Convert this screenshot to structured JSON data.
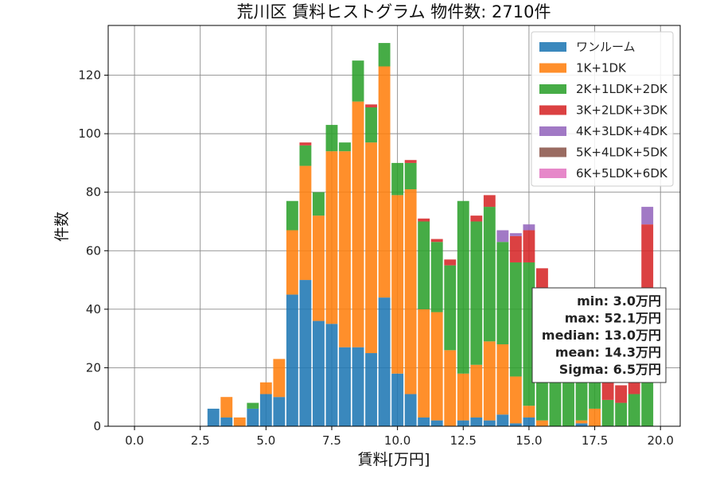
{
  "chart_data": {
    "type": "bar",
    "stacked": true,
    "title": "荒川区 賃料ヒストグラム 物件数: 2710件",
    "xlabel": "賃料[万円]",
    "ylabel": "件数",
    "xlim": [
      -1.0,
      20.75
    ],
    "ylim": [
      0,
      137
    ],
    "x_ticks": [
      0.0,
      2.5,
      5.0,
      7.5,
      10.0,
      12.5,
      15.0,
      17.5,
      20.0
    ],
    "x_tick_labels": [
      "0.0",
      "2.5",
      "5.0",
      "7.5",
      "10.0",
      "12.5",
      "15.0",
      "17.5",
      "20.0"
    ],
    "y_ticks": [
      0,
      20,
      40,
      60,
      80,
      100,
      120
    ],
    "y_tick_labels": [
      "0",
      "20",
      "40",
      "60",
      "80",
      "100",
      "120"
    ],
    "bin_width": 0.5,
    "bins": [
      3.0,
      3.5,
      4.0,
      4.5,
      5.0,
      5.5,
      6.0,
      6.5,
      7.0,
      7.5,
      8.0,
      8.5,
      9.0,
      9.5,
      10.0,
      10.5,
      11.0,
      11.5,
      12.0,
      12.5,
      13.0,
      13.5,
      14.0,
      14.5,
      15.0,
      15.5,
      16.0,
      16.5,
      17.0,
      17.5,
      18.0,
      18.5,
      19.0,
      19.5
    ],
    "grid": true,
    "legend_position": "top-right",
    "series": [
      {
        "name": "ワンルーム",
        "color": "#1f77b4",
        "values": [
          6,
          3,
          0,
          6,
          11,
          10,
          45,
          50,
          36,
          35,
          27,
          27,
          25,
          44,
          18,
          11,
          3,
          2,
          0,
          2,
          3,
          2,
          4,
          1,
          3,
          0,
          0,
          0,
          1,
          0,
          0,
          0,
          0,
          0
        ]
      },
      {
        "name": "1K+1DK",
        "color": "#ff7f0e",
        "values": [
          0,
          7,
          3,
          0,
          4,
          13,
          22,
          39,
          36,
          59,
          67,
          84,
          72,
          79,
          61,
          70,
          37,
          37,
          26,
          16,
          18,
          27,
          24,
          16,
          4,
          2,
          0,
          0,
          1,
          6,
          0,
          0,
          0,
          0
        ]
      },
      {
        "name": "2K+1LDK+2DK",
        "color": "#2ca02c",
        "values": [
          0,
          0,
          0,
          2,
          0,
          0,
          10,
          7,
          8,
          9,
          3,
          14,
          12,
          8,
          11,
          9,
          30,
          24,
          29,
          59,
          49,
          46,
          35,
          39,
          49,
          45,
          30,
          28,
          27,
          12,
          9,
          8,
          11,
          15
        ]
      },
      {
        "name": "3K+2LDK+3DK",
        "color": "#d62728",
        "values": [
          0,
          0,
          0,
          0,
          0,
          0,
          0,
          1,
          0,
          0,
          0,
          0,
          1,
          0,
          0,
          1,
          1,
          1,
          2,
          0,
          2,
          4,
          0,
          9,
          11,
          7,
          12,
          10,
          13,
          10,
          6,
          6,
          6,
          54
        ]
      },
      {
        "name": "4K+3LDK+4DK",
        "color": "#9467bd",
        "values": [
          0,
          0,
          0,
          0,
          0,
          0,
          0,
          0,
          0,
          0,
          0,
          0,
          0,
          0,
          0,
          0,
          0,
          0,
          0,
          0,
          0,
          0,
          4,
          1,
          2,
          0,
          0,
          0,
          0,
          0,
          0,
          0,
          0,
          6
        ]
      },
      {
        "name": "5K+4LDK+5DK",
        "color": "#8c564b",
        "values": [
          0,
          0,
          0,
          0,
          0,
          0,
          0,
          0,
          0,
          0,
          0,
          0,
          0,
          0,
          0,
          0,
          0,
          0,
          0,
          0,
          0,
          0,
          0,
          0,
          0,
          0,
          0,
          0,
          0,
          0,
          0,
          0,
          0,
          0
        ]
      },
      {
        "name": "6K+5LDK+6DK",
        "color": "#e377c2",
        "values": [
          0,
          0,
          0,
          0,
          0,
          0,
          0,
          0,
          0,
          0,
          0,
          0,
          0,
          0,
          0,
          0,
          0,
          0,
          0,
          0,
          0,
          0,
          0,
          0,
          0,
          0,
          0,
          0,
          0,
          0,
          0,
          0,
          0,
          0
        ]
      }
    ],
    "stats_box": {
      "lines": [
        "min: 3.0万円",
        "max: 52.1万円",
        "median: 13.0万円",
        "mean: 14.3万円",
        "Sigma: 6.5万円"
      ]
    }
  }
}
